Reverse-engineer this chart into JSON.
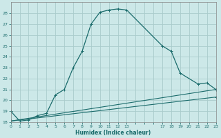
{
  "xlabel": "Humidex (Indice chaleur)",
  "background_color": "#cce8e8",
  "grid_color": "#aacccc",
  "line_color": "#1a6b6b",
  "ylim": [
    18,
    29
  ],
  "xlim": [
    0,
    23
  ],
  "yticks": [
    18,
    19,
    20,
    21,
    22,
    23,
    24,
    25,
    26,
    27,
    28
  ],
  "xtick_labels": [
    "0",
    "1",
    "2",
    "3",
    "4",
    "5",
    "6",
    "7",
    "8",
    "9",
    "10",
    "11",
    "12",
    "13",
    "",
    "",
    "",
    "17",
    "18",
    "19",
    "20",
    "21",
    "22",
    "23"
  ],
  "xtick_positions": [
    0,
    1,
    2,
    3,
    4,
    5,
    6,
    7,
    8,
    9,
    10,
    11,
    12,
    13,
    14,
    15,
    16,
    17,
    18,
    19,
    20,
    21,
    22,
    23
  ],
  "series1_x": [
    0,
    1,
    2,
    3,
    4,
    5,
    6,
    7,
    8,
    9,
    10,
    11,
    12,
    13,
    17,
    18,
    19,
    21,
    22,
    23
  ],
  "series1_y": [
    19.0,
    18.1,
    18.2,
    18.6,
    18.8,
    20.5,
    21.0,
    23.0,
    24.5,
    27.0,
    28.1,
    28.3,
    28.4,
    28.3,
    25.0,
    24.5,
    22.5,
    21.5,
    21.6,
    21.0
  ],
  "series2_x": [
    0,
    23
  ],
  "series2_y": [
    18.1,
    21.0
  ],
  "series3_x": [
    0,
    23
  ],
  "series3_y": [
    18.1,
    20.3
  ]
}
